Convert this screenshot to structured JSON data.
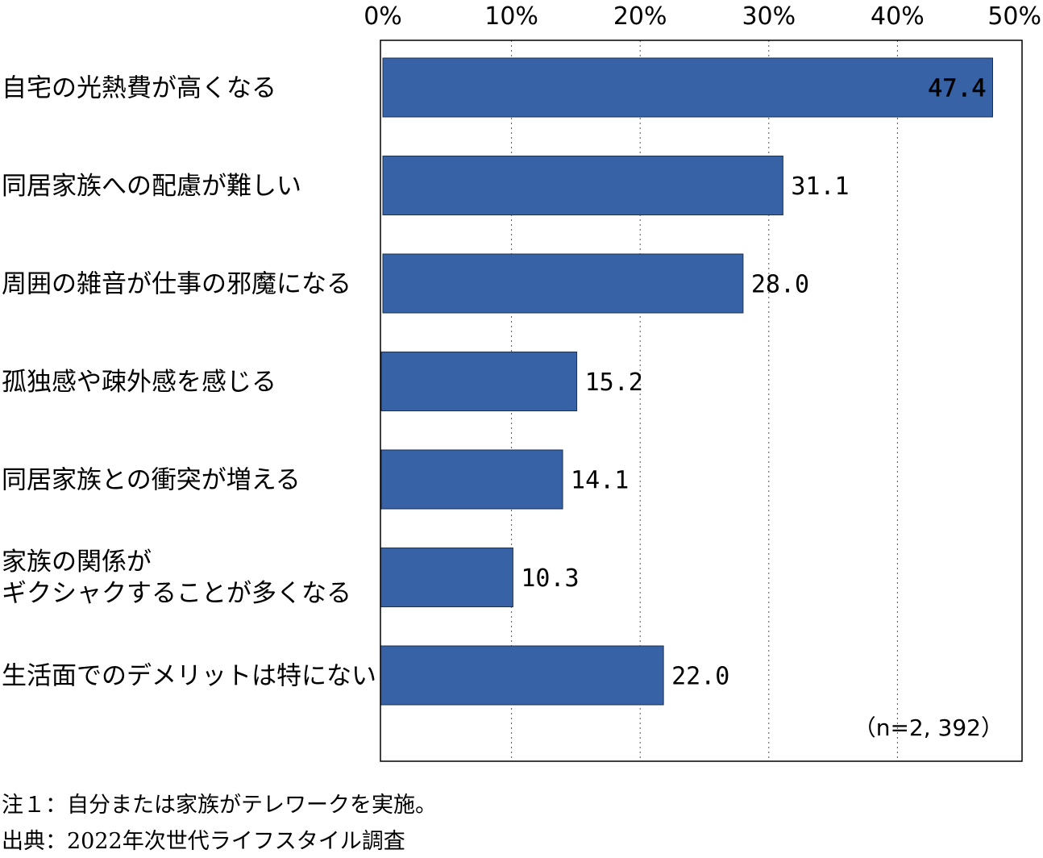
{
  "chart_data": {
    "type": "bar",
    "orientation": "horizontal",
    "categories": [
      [
        "自宅の光熱費が高くなる"
      ],
      [
        "同居家族への配慮が難しい"
      ],
      [
        "周囲の雑音が仕事の邪魔になる"
      ],
      [
        "孤独感や疎外感を感じる"
      ],
      [
        "同居家族との衝突が増える"
      ],
      [
        "家族の関係が",
        "ギクシャクすることが多くなる"
      ],
      [
        "生活面でのデメリットは特にない"
      ]
    ],
    "values": [
      47.4,
      31.1,
      28.0,
      15.2,
      14.1,
      10.3,
      22.0
    ],
    "value_labels": [
      "47.4",
      "31.1",
      "28.0",
      "15.2",
      "14.1",
      "10.3",
      "22.0"
    ],
    "x_ticks": [
      "0%",
      "10%",
      "20%",
      "30%",
      "40%",
      "50%"
    ],
    "xlim": [
      0,
      50
    ],
    "bar_color": "#3762a5",
    "highlight_label_color": "#ffffff",
    "grid": "vertical-dotted",
    "sample_note": "（n=2, 392）"
  },
  "notes": [
    "注１：自分または家族がテレワークを実施。",
    "出典：2022年次世代ライフスタイル調査"
  ]
}
